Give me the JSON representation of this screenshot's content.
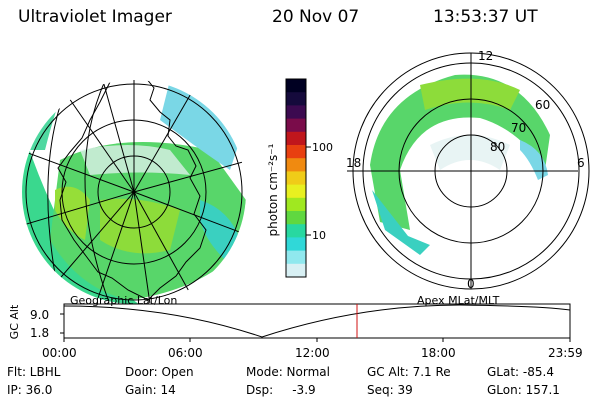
{
  "header": {
    "title": "Ultraviolet Imager",
    "date": "20 Nov 07",
    "time": "13:53:37 UT"
  },
  "colorbar": {
    "label": "photon cm⁻²s⁻¹",
    "ticks": [
      "100",
      "10"
    ],
    "colors": [
      "#000022",
      "#150a3c",
      "#3c0a50",
      "#7a0c4a",
      "#c0161c",
      "#e84010",
      "#f08a10",
      "#f0cc18",
      "#e8f020",
      "#a0e820",
      "#60d840",
      "#28d8a0",
      "#30d8d8",
      "#90e8ee",
      "#d8f0f4"
    ]
  },
  "left_map": {
    "projection_label": "Geographic Lat/Lon"
  },
  "right_map": {
    "projection_label": "Apex MLat/MLT",
    "mlt_labels": {
      "top": "12",
      "left": "18",
      "right": "6",
      "bottom": "0"
    },
    "mlat_labels": [
      "60",
      "70",
      "80"
    ]
  },
  "timeline": {
    "ylabel": "GC Alt",
    "y_ticks": [
      "9.0",
      "1.8"
    ],
    "x_ticks": [
      "00:00",
      "06:00",
      "12:00",
      "18:00",
      "23:59"
    ],
    "marker_time": "13:53",
    "marker_fraction": 0.579
  },
  "status": {
    "flt": "Flt: LBHL",
    "ip": "IP: 36.0",
    "door": "Door: Open",
    "gain": "Gain: 14",
    "mode": "Mode: Normal",
    "dsp": "Dsp:     -3.9",
    "gc_alt": "GC Alt: 7.1 Re",
    "seq": "Seq: 39",
    "glat": "GLat: -85.4",
    "glon": "GLon: 157.1"
  }
}
